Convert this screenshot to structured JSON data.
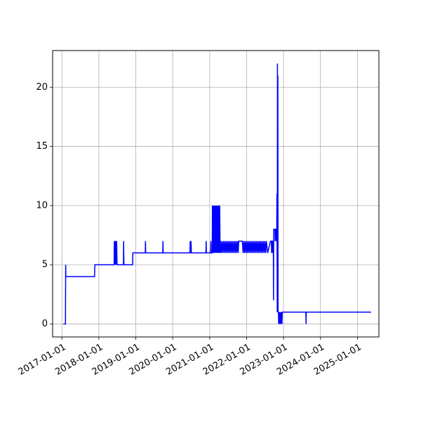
{
  "chart_data": {
    "type": "line",
    "title": "",
    "xlabel": "",
    "ylabel": "",
    "grid": true,
    "line_color": "#0000ff",
    "axis_color": "#000000",
    "grid_color": "#b0b0b0",
    "xlim": [
      "2016-10-01",
      "2025-08-01"
    ],
    "ylim": [
      -1.1,
      23.1
    ],
    "x_ticks": [
      "2017-01-01",
      "2018-01-01",
      "2019-01-01",
      "2020-01-01",
      "2021-01-01",
      "2022-01-01",
      "2023-01-01",
      "2024-01-01",
      "2025-01-01"
    ],
    "y_ticks": [
      0,
      5,
      10,
      15,
      20
    ],
    "series": [
      {
        "points": [
          [
            "2017-01-15",
            0
          ],
          [
            "2017-02-05",
            0
          ],
          [
            "2017-02-07",
            5
          ],
          [
            "2017-02-09",
            4
          ],
          [
            "2017-11-20",
            4
          ],
          [
            "2017-11-22",
            5
          ],
          [
            "2018-06-01",
            5
          ],
          [
            "2018-06-03",
            7
          ],
          [
            "2018-06-06",
            5
          ],
          [
            "2018-06-10",
            7
          ],
          [
            "2018-06-14",
            5
          ],
          [
            "2018-06-18",
            7
          ],
          [
            "2018-06-22",
            5
          ],
          [
            "2018-06-26",
            7
          ],
          [
            "2018-06-30",
            5
          ],
          [
            "2018-09-01",
            5
          ],
          [
            "2018-09-03",
            7
          ],
          [
            "2018-09-06",
            5
          ],
          [
            "2018-12-01",
            5
          ],
          [
            "2018-12-03",
            6
          ],
          [
            "2019-04-05",
            6
          ],
          [
            "2019-04-07",
            7
          ],
          [
            "2019-04-09",
            6
          ],
          [
            "2019-09-25",
            6
          ],
          [
            "2019-09-27",
            7
          ],
          [
            "2019-09-29",
            6
          ],
          [
            "2020-06-20",
            6
          ],
          [
            "2020-06-22",
            7
          ],
          [
            "2020-06-26",
            6
          ],
          [
            "2020-06-30",
            7
          ],
          [
            "2020-07-04",
            6
          ],
          [
            "2020-11-25",
            6
          ],
          [
            "2020-11-27",
            7
          ],
          [
            "2020-11-29",
            6
          ],
          [
            "2021-01-10",
            6
          ],
          [
            "2021-01-13",
            7
          ],
          [
            "2021-01-15",
            6
          ],
          [
            "2021-01-26",
            6
          ],
          [
            "2021-01-28",
            10
          ],
          [
            "2021-02-02",
            6
          ],
          [
            "2021-02-06",
            10
          ],
          [
            "2021-02-11",
            6
          ],
          [
            "2021-02-15",
            10
          ],
          [
            "2021-02-20",
            6
          ],
          [
            "2021-02-24",
            10
          ],
          [
            "2021-03-01",
            6
          ],
          [
            "2021-03-05",
            10
          ],
          [
            "2021-03-10",
            6
          ],
          [
            "2021-03-14",
            10
          ],
          [
            "2021-03-19",
            6
          ],
          [
            "2021-03-23",
            10
          ],
          [
            "2021-03-28",
            6
          ],
          [
            "2021-04-01",
            10
          ],
          [
            "2021-04-06",
            6
          ],
          [
            "2021-04-10",
            10
          ],
          [
            "2021-04-14",
            6
          ],
          [
            "2021-04-18",
            7
          ],
          [
            "2021-04-25",
            6
          ],
          [
            "2021-05-02",
            7
          ],
          [
            "2021-05-09",
            6
          ],
          [
            "2021-05-16",
            7
          ],
          [
            "2021-05-23",
            6
          ],
          [
            "2021-05-30",
            7
          ],
          [
            "2021-06-06",
            6
          ],
          [
            "2021-06-13",
            7
          ],
          [
            "2021-06-20",
            6
          ],
          [
            "2021-06-27",
            7
          ],
          [
            "2021-07-04",
            6
          ],
          [
            "2021-07-11",
            7
          ],
          [
            "2021-07-18",
            6
          ],
          [
            "2021-07-25",
            7
          ],
          [
            "2021-08-01",
            6
          ],
          [
            "2021-08-08",
            7
          ],
          [
            "2021-08-15",
            6
          ],
          [
            "2021-08-22",
            7
          ],
          [
            "2021-08-29",
            6
          ],
          [
            "2021-09-05",
            7
          ],
          [
            "2021-09-12",
            6
          ],
          [
            "2021-09-19",
            7
          ],
          [
            "2021-09-26",
            6
          ],
          [
            "2021-10-03",
            7
          ],
          [
            "2021-10-10",
            6
          ],
          [
            "2021-10-15",
            7
          ],
          [
            "2021-11-20",
            7
          ],
          [
            "2021-11-27",
            6
          ],
          [
            "2021-12-04",
            7
          ],
          [
            "2021-12-11",
            6
          ],
          [
            "2021-12-18",
            7
          ],
          [
            "2021-12-25",
            6
          ],
          [
            "2022-01-01",
            7
          ],
          [
            "2022-01-08",
            6
          ],
          [
            "2022-01-15",
            7
          ],
          [
            "2022-01-22",
            6
          ],
          [
            "2022-01-29",
            7
          ],
          [
            "2022-02-05",
            6
          ],
          [
            "2022-02-12",
            7
          ],
          [
            "2022-02-19",
            6
          ],
          [
            "2022-02-26",
            7
          ],
          [
            "2022-03-05",
            6
          ],
          [
            "2022-03-12",
            7
          ],
          [
            "2022-03-19",
            6
          ],
          [
            "2022-03-26",
            7
          ],
          [
            "2022-04-02",
            6
          ],
          [
            "2022-04-09",
            7
          ],
          [
            "2022-04-16",
            6
          ],
          [
            "2022-04-23",
            7
          ],
          [
            "2022-04-30",
            6
          ],
          [
            "2022-05-07",
            7
          ],
          [
            "2022-05-14",
            6
          ],
          [
            "2022-05-21",
            7
          ],
          [
            "2022-05-28",
            6
          ],
          [
            "2022-06-04",
            7
          ],
          [
            "2022-06-11",
            6
          ],
          [
            "2022-06-18",
            7
          ],
          [
            "2022-06-25",
            6
          ],
          [
            "2022-07-02",
            7
          ],
          [
            "2022-07-09",
            6
          ],
          [
            "2022-07-16",
            7
          ],
          [
            "2022-07-28",
            6
          ],
          [
            "2022-08-25",
            7
          ],
          [
            "2022-09-03",
            7
          ],
          [
            "2022-09-05",
            6
          ],
          [
            "2022-09-07",
            7
          ],
          [
            "2022-09-12",
            7
          ],
          [
            "2022-09-14",
            6
          ],
          [
            "2022-09-16",
            7
          ],
          [
            "2022-09-22",
            7
          ],
          [
            "2022-09-24",
            2
          ],
          [
            "2022-09-26",
            8
          ],
          [
            "2022-10-08",
            8
          ],
          [
            "2022-10-10",
            7
          ],
          [
            "2022-10-14",
            8
          ],
          [
            "2022-10-18",
            8
          ],
          [
            "2022-10-20",
            7
          ],
          [
            "2022-10-22",
            8
          ],
          [
            "2022-10-26",
            8
          ],
          [
            "2022-10-28",
            11
          ],
          [
            "2022-10-31",
            1
          ],
          [
            "2022-11-02",
            22
          ],
          [
            "2022-11-04",
            1
          ],
          [
            "2022-11-06",
            21
          ],
          [
            "2022-11-08",
            1
          ],
          [
            "2022-11-12",
            1
          ],
          [
            "2022-11-14",
            0
          ],
          [
            "2022-11-18",
            1
          ],
          [
            "2022-11-22",
            0
          ],
          [
            "2022-11-26",
            1
          ],
          [
            "2022-11-30",
            0
          ],
          [
            "2022-12-04",
            1
          ],
          [
            "2022-12-08",
            0
          ],
          [
            "2022-12-12",
            1
          ],
          [
            "2022-12-16",
            0
          ],
          [
            "2022-12-20",
            1
          ],
          [
            "2023-08-10",
            1
          ],
          [
            "2023-08-12",
            0
          ],
          [
            "2023-08-14",
            1
          ],
          [
            "2025-05-15",
            1
          ]
        ]
      }
    ]
  }
}
